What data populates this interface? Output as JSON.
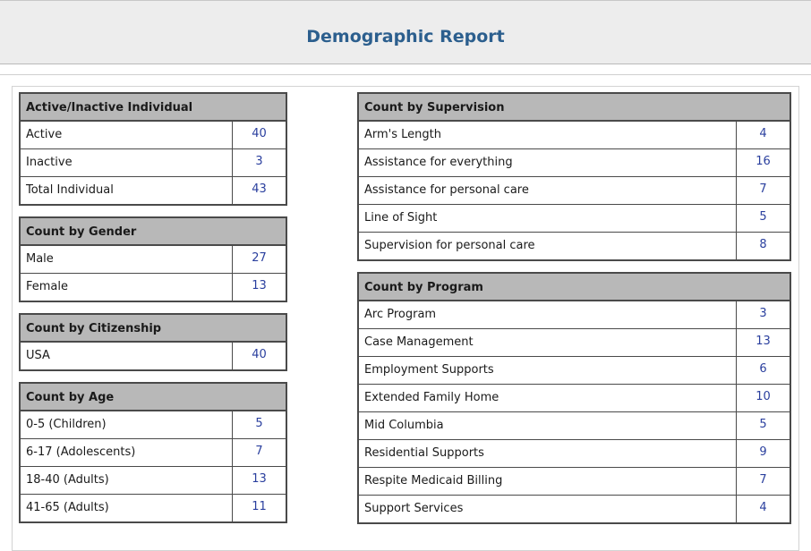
{
  "page": {
    "title": "Demographic Report"
  },
  "left_tables": [
    {
      "title": "Active/Inactive Individual",
      "rows": [
        {
          "label": "Active",
          "value": "40"
        },
        {
          "label": "Inactive",
          "value": "3"
        },
        {
          "label": "Total Individual",
          "value": "43"
        }
      ]
    },
    {
      "title": "Count by Gender",
      "rows": [
        {
          "label": "Male",
          "value": "27"
        },
        {
          "label": "Female",
          "value": "13"
        }
      ]
    },
    {
      "title": "Count by Citizenship",
      "rows": [
        {
          "label": "USA",
          "value": "40"
        }
      ]
    },
    {
      "title": "Count by Age",
      "rows": [
        {
          "label": "0-5 (Children)",
          "value": "5"
        },
        {
          "label": "6-17 (Adolescents)",
          "value": "7"
        },
        {
          "label": "18-40 (Adults)",
          "value": "13"
        },
        {
          "label": "41-65 (Adults)",
          "value": "11"
        }
      ]
    }
  ],
  "right_tables": [
    {
      "title": "Count by Supervision",
      "rows": [
        {
          "label": "Arm's Length",
          "value": "4"
        },
        {
          "label": "Assistance for everything",
          "value": "16"
        },
        {
          "label": "Assistance for personal care",
          "value": "7"
        },
        {
          "label": "Line of Sight",
          "value": "5"
        },
        {
          "label": "Supervision for personal care",
          "value": "8"
        }
      ]
    },
    {
      "title": "Count by Program",
      "rows": [
        {
          "label": "Arc Program",
          "value": "3"
        },
        {
          "label": "Case Management",
          "value": "13"
        },
        {
          "label": "Employment Supports",
          "value": "6"
        },
        {
          "label": "Extended Family Home",
          "value": "10"
        },
        {
          "label": "Mid Columbia",
          "value": "5"
        },
        {
          "label": "Residential Supports",
          "value": "9"
        },
        {
          "label": "Respite Medicaid Billing",
          "value": "7"
        },
        {
          "label": "Support Services",
          "value": "4"
        }
      ]
    }
  ]
}
